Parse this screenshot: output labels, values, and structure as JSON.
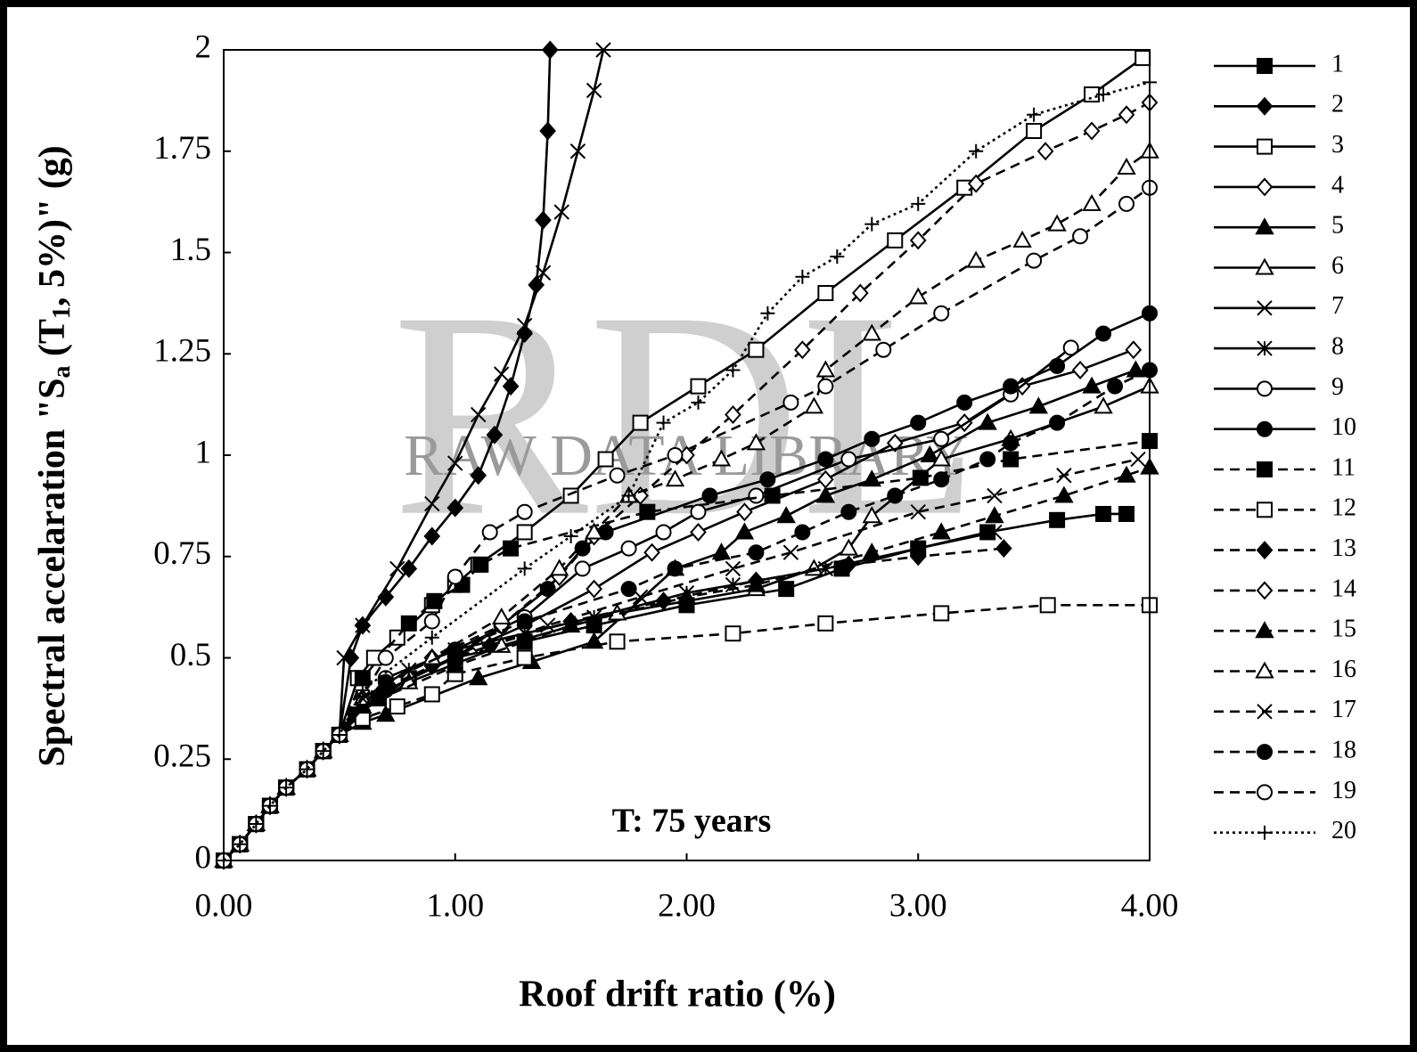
{
  "chart_data": {
    "type": "line",
    "annotation": "T: 75 years",
    "x_label": "Roof drift ratio (%)",
    "y_label_parts": [
      "Spectral accelaration  \"S",
      "a",
      " (T",
      "1",
      ", 5%)\"  (g)"
    ],
    "watermark": [
      "RDL",
      "RAW DATA LIBRARY"
    ],
    "xlim": [
      0,
      4
    ],
    "xticks": [
      {
        "value": 0,
        "label": "0.00"
      },
      {
        "value": 1,
        "label": "1.00"
      },
      {
        "value": 2,
        "label": "2.00"
      },
      {
        "value": 3,
        "label": "3.00"
      },
      {
        "value": 4,
        "label": "4.00"
      }
    ],
    "ylim": [
      0,
      2
    ],
    "yticks": [
      0,
      0.25,
      0.5,
      0.75,
      1,
      1.25,
      1.5,
      1.75,
      2
    ],
    "series": [
      {
        "name": "1",
        "line": "solid",
        "marker": "square",
        "filled": true,
        "color": "#000000",
        "x": [
          0,
          0.07,
          0.14,
          0.2,
          0.27,
          0.36,
          0.43,
          0.5,
          0.57,
          0.67,
          0.8,
          1.0,
          1.3,
          1.6,
          2.0,
          2.43,
          2.67,
          3.0,
          3.3,
          3.6,
          3.8,
          3.9
        ],
        "values": [
          0,
          0.04,
          0.09,
          0.135,
          0.18,
          0.225,
          0.27,
          0.31,
          0.36,
          0.4,
          0.45,
          0.5,
          0.54,
          0.58,
          0.63,
          0.67,
          0.72,
          0.77,
          0.81,
          0.84,
          0.855,
          0.855
        ]
      },
      {
        "name": "2",
        "line": "solid",
        "marker": "diamond",
        "filled": true,
        "color": "#000000",
        "x": [
          0,
          0.07,
          0.14,
          0.2,
          0.27,
          0.36,
          0.43,
          0.5,
          0.55,
          0.6,
          0.7,
          0.8,
          0.9,
          1.0,
          1.1,
          1.17,
          1.24,
          1.3,
          1.35,
          1.38,
          1.4,
          1.41
        ],
        "values": [
          0,
          0.04,
          0.09,
          0.135,
          0.18,
          0.225,
          0.27,
          0.31,
          0.5,
          0.58,
          0.65,
          0.72,
          0.8,
          0.87,
          0.95,
          1.05,
          1.17,
          1.3,
          1.42,
          1.58,
          1.8,
          2.0
        ]
      },
      {
        "name": "3",
        "line": "solid",
        "marker": "square",
        "filled": false,
        "color": "#000000",
        "x": [
          0,
          0.07,
          0.14,
          0.2,
          0.27,
          0.36,
          0.43,
          0.5,
          0.58,
          0.65,
          0.75,
          0.9,
          1.0,
          1.1,
          1.3,
          1.5,
          1.65,
          1.8,
          2.05,
          2.3,
          2.6,
          2.9,
          3.2,
          3.5,
          3.75,
          3.97
        ],
        "values": [
          0,
          0.04,
          0.09,
          0.135,
          0.18,
          0.225,
          0.27,
          0.31,
          0.45,
          0.5,
          0.55,
          0.63,
          0.68,
          0.73,
          0.81,
          0.9,
          0.99,
          1.08,
          1.17,
          1.26,
          1.4,
          1.53,
          1.66,
          1.8,
          1.89,
          1.98
        ]
      },
      {
        "name": "4",
        "line": "solid",
        "marker": "diamond",
        "filled": false,
        "color": "#000000",
        "x": [
          0,
          0.07,
          0.14,
          0.2,
          0.27,
          0.36,
          0.43,
          0.5,
          0.6,
          0.8,
          1.1,
          1.3,
          1.6,
          1.85,
          2.05,
          2.25,
          2.6,
          2.9,
          3.2,
          3.45,
          3.7,
          3.93
        ],
        "values": [
          0,
          0.04,
          0.09,
          0.135,
          0.18,
          0.225,
          0.27,
          0.31,
          0.37,
          0.45,
          0.53,
          0.58,
          0.67,
          0.76,
          0.81,
          0.86,
          0.94,
          1.03,
          1.08,
          1.17,
          1.21,
          1.26
        ]
      },
      {
        "name": "5",
        "line": "solid",
        "marker": "triangle",
        "filled": true,
        "color": "#000000",
        "x": [
          0,
          0.07,
          0.14,
          0.2,
          0.27,
          0.36,
          0.43,
          0.5,
          0.6,
          0.7,
          1.1,
          1.33,
          1.6,
          1.95,
          2.15,
          2.25,
          2.43,
          2.6,
          2.8,
          3.05,
          3.3,
          3.52,
          3.75,
          3.94
        ],
        "values": [
          0,
          0.04,
          0.09,
          0.135,
          0.18,
          0.225,
          0.27,
          0.31,
          0.34,
          0.36,
          0.45,
          0.49,
          0.54,
          0.72,
          0.76,
          0.81,
          0.85,
          0.9,
          0.94,
          1.0,
          1.08,
          1.12,
          1.17,
          1.21
        ]
      },
      {
        "name": "6",
        "line": "solid",
        "marker": "triangle",
        "filled": false,
        "color": "#000000",
        "x": [
          0,
          0.07,
          0.14,
          0.2,
          0.27,
          0.36,
          0.43,
          0.5,
          0.6,
          0.8,
          1.2,
          1.7,
          2.3,
          2.55,
          2.7,
          2.8,
          3.1,
          3.4,
          3.8,
          4.0
        ],
        "values": [
          0,
          0.04,
          0.09,
          0.135,
          0.18,
          0.225,
          0.27,
          0.31,
          0.37,
          0.44,
          0.53,
          0.61,
          0.67,
          0.72,
          0.77,
          0.85,
          0.99,
          1.04,
          1.12,
          1.17
        ]
      },
      {
        "name": "7",
        "line": "solid",
        "marker": "x",
        "filled": false,
        "color": "#000000",
        "x": [
          0,
          0.07,
          0.14,
          0.2,
          0.27,
          0.36,
          0.43,
          0.5,
          0.52,
          0.6,
          0.75,
          0.9,
          1.0,
          1.1,
          1.2,
          1.3,
          1.38,
          1.46,
          1.53,
          1.6,
          1.64
        ],
        "values": [
          0,
          0.04,
          0.09,
          0.135,
          0.18,
          0.225,
          0.27,
          0.31,
          0.5,
          0.58,
          0.72,
          0.88,
          0.98,
          1.1,
          1.2,
          1.32,
          1.45,
          1.6,
          1.75,
          1.9,
          2.0
        ]
      },
      {
        "name": "8",
        "line": "solid",
        "marker": "asterisk",
        "filled": false,
        "color": "#000000",
        "x": [
          0,
          0.07,
          0.14,
          0.2,
          0.27,
          0.36,
          0.43,
          0.5,
          0.6,
          0.8,
          1.0,
          1.3,
          1.6,
          2.0,
          2.2,
          2.6,
          3.0,
          3.33
        ],
        "values": [
          0,
          0.04,
          0.09,
          0.135,
          0.18,
          0.225,
          0.27,
          0.31,
          0.4,
          0.47,
          0.52,
          0.56,
          0.6,
          0.66,
          0.68,
          0.72,
          0.77,
          0.81
        ]
      },
      {
        "name": "9",
        "line": "solid",
        "marker": "circle",
        "filled": false,
        "color": "#000000",
        "x": [
          0,
          0.07,
          0.14,
          0.2,
          0.27,
          0.36,
          0.43,
          0.5,
          0.7,
          1.0,
          1.3,
          1.55,
          1.75,
          1.9,
          2.05,
          2.3,
          2.7,
          3.1,
          3.4,
          3.66
        ],
        "values": [
          0,
          0.04,
          0.09,
          0.135,
          0.18,
          0.225,
          0.27,
          0.31,
          0.45,
          0.52,
          0.6,
          0.72,
          0.77,
          0.81,
          0.86,
          0.9,
          0.99,
          1.04,
          1.15,
          1.265
        ]
      },
      {
        "name": "10",
        "line": "solid",
        "marker": "circle",
        "filled": true,
        "color": "#000000",
        "x": [
          0,
          0.07,
          0.14,
          0.2,
          0.27,
          0.36,
          0.43,
          0.5,
          0.7,
          1.0,
          1.2,
          1.4,
          1.55,
          1.65,
          2.1,
          2.35,
          2.6,
          2.8,
          3.0,
          3.2,
          3.4,
          3.6,
          3.8,
          4.0
        ],
        "values": [
          0,
          0.04,
          0.09,
          0.135,
          0.18,
          0.225,
          0.27,
          0.31,
          0.42,
          0.5,
          0.58,
          0.67,
          0.77,
          0.81,
          0.9,
          0.94,
          0.99,
          1.04,
          1.08,
          1.13,
          1.17,
          1.22,
          1.3,
          1.35
        ]
      },
      {
        "name": "11",
        "line": "dashed",
        "marker": "square",
        "filled": true,
        "color": "#000000",
        "x": [
          0,
          0.07,
          0.14,
          0.2,
          0.27,
          0.36,
          0.43,
          0.5,
          0.6,
          0.8,
          0.91,
          1.03,
          1.11,
          1.24,
          1.83,
          2.37,
          3.01,
          3.4,
          4.0
        ],
        "values": [
          0,
          0.04,
          0.09,
          0.135,
          0.18,
          0.225,
          0.27,
          0.31,
          0.45,
          0.585,
          0.64,
          0.68,
          0.73,
          0.77,
          0.86,
          0.9,
          0.944,
          0.99,
          1.035
        ]
      },
      {
        "name": "12",
        "line": "dashed",
        "marker": "square",
        "filled": false,
        "color": "#000000",
        "x": [
          0,
          0.07,
          0.14,
          0.2,
          0.27,
          0.36,
          0.43,
          0.5,
          0.6,
          0.75,
          0.9,
          1.0,
          1.3,
          1.7,
          2.2,
          2.6,
          3.1,
          3.56,
          4.0
        ],
        "values": [
          0,
          0.04,
          0.09,
          0.135,
          0.18,
          0.225,
          0.27,
          0.31,
          0.35,
          0.38,
          0.41,
          0.46,
          0.5,
          0.54,
          0.56,
          0.585,
          0.61,
          0.63,
          0.63
        ]
      },
      {
        "name": "13",
        "line": "dashed",
        "marker": "diamond",
        "filled": true,
        "color": "#000000",
        "x": [
          0,
          0.07,
          0.14,
          0.2,
          0.27,
          0.36,
          0.43,
          0.5,
          0.6,
          0.9,
          1.15,
          1.5,
          1.9,
          2.3,
          2.7,
          3.0,
          3.37
        ],
        "values": [
          0,
          0.04,
          0.09,
          0.135,
          0.18,
          0.225,
          0.27,
          0.31,
          0.4,
          0.48,
          0.53,
          0.59,
          0.64,
          0.69,
          0.73,
          0.75,
          0.77
        ]
      },
      {
        "name": "14",
        "line": "dashed",
        "marker": "diamond",
        "filled": false,
        "color": "#000000",
        "x": [
          0,
          0.07,
          0.14,
          0.2,
          0.27,
          0.36,
          0.43,
          0.5,
          0.6,
          0.9,
          1.2,
          1.45,
          1.6,
          1.8,
          2.0,
          2.2,
          2.5,
          2.75,
          3.0,
          3.25,
          3.55,
          3.75,
          3.9,
          4.0
        ],
        "values": [
          0,
          0.04,
          0.09,
          0.135,
          0.18,
          0.225,
          0.27,
          0.31,
          0.4,
          0.5,
          0.58,
          0.7,
          0.8,
          0.9,
          1.0,
          1.1,
          1.26,
          1.4,
          1.53,
          1.67,
          1.75,
          1.8,
          1.84,
          1.87
        ]
      },
      {
        "name": "15",
        "line": "dashed",
        "marker": "triangle",
        "filled": true,
        "color": "#000000",
        "x": [
          0,
          0.07,
          0.14,
          0.2,
          0.27,
          0.36,
          0.43,
          0.5,
          0.6,
          1.0,
          1.5,
          2.0,
          2.3,
          2.8,
          3.1,
          3.33,
          3.63,
          3.9,
          4.0
        ],
        "values": [
          0,
          0.04,
          0.09,
          0.135,
          0.18,
          0.225,
          0.27,
          0.31,
          0.38,
          0.48,
          0.58,
          0.65,
          0.68,
          0.76,
          0.81,
          0.85,
          0.9,
          0.95,
          0.97
        ]
      },
      {
        "name": "16",
        "line": "dashed",
        "marker": "triangle",
        "filled": false,
        "color": "#000000",
        "x": [
          0,
          0.07,
          0.14,
          0.2,
          0.27,
          0.36,
          0.43,
          0.5,
          0.6,
          0.9,
          1.2,
          1.45,
          1.6,
          1.75,
          1.95,
          2.15,
          2.3,
          2.55,
          2.6,
          2.8,
          3.0,
          3.25,
          3.45,
          3.6,
          3.75,
          3.9,
          4.0
        ],
        "values": [
          0,
          0.04,
          0.09,
          0.135,
          0.18,
          0.225,
          0.27,
          0.31,
          0.4,
          0.5,
          0.6,
          0.72,
          0.81,
          0.9,
          0.94,
          0.99,
          1.03,
          1.12,
          1.21,
          1.3,
          1.39,
          1.48,
          1.53,
          1.57,
          1.62,
          1.71,
          1.75
        ]
      },
      {
        "name": "17",
        "line": "dashed",
        "marker": "x",
        "filled": false,
        "color": "#000000",
        "x": [
          0,
          0.07,
          0.14,
          0.2,
          0.27,
          0.36,
          0.43,
          0.5,
          0.6,
          1.0,
          1.4,
          1.8,
          2.2,
          2.45,
          3.0,
          3.33,
          3.63,
          3.95
        ],
        "values": [
          0,
          0.04,
          0.09,
          0.135,
          0.18,
          0.225,
          0.27,
          0.31,
          0.4,
          0.5,
          0.58,
          0.65,
          0.72,
          0.76,
          0.86,
          0.9,
          0.95,
          0.99
        ]
      },
      {
        "name": "18",
        "line": "dashed",
        "marker": "circle",
        "filled": true,
        "color": "#000000",
        "x": [
          0,
          0.07,
          0.14,
          0.2,
          0.27,
          0.36,
          0.43,
          0.5,
          0.7,
          1.0,
          1.3,
          1.75,
          1.95,
          2.3,
          2.5,
          2.7,
          2.9,
          3.1,
          3.3,
          3.4,
          3.6,
          3.85,
          4.0
        ],
        "values": [
          0,
          0.04,
          0.09,
          0.135,
          0.18,
          0.225,
          0.27,
          0.31,
          0.44,
          0.52,
          0.59,
          0.67,
          0.72,
          0.76,
          0.81,
          0.86,
          0.9,
          0.94,
          0.99,
          1.03,
          1.08,
          1.17,
          1.21
        ]
      },
      {
        "name": "19",
        "line": "dashed",
        "marker": "circle",
        "filled": false,
        "color": "#000000",
        "x": [
          0,
          0.07,
          0.14,
          0.2,
          0.27,
          0.36,
          0.43,
          0.5,
          0.7,
          0.9,
          1.0,
          1.15,
          1.3,
          1.7,
          1.95,
          2.45,
          2.6,
          2.85,
          3.1,
          3.5,
          3.7,
          3.9,
          4.0
        ],
        "values": [
          0,
          0.04,
          0.09,
          0.135,
          0.18,
          0.225,
          0.27,
          0.31,
          0.5,
          0.59,
          0.7,
          0.81,
          0.86,
          0.95,
          1.0,
          1.13,
          1.17,
          1.26,
          1.35,
          1.48,
          1.54,
          1.62,
          1.66
        ]
      },
      {
        "name": "20",
        "line": "dotted",
        "marker": "plus",
        "filled": false,
        "color": "#000000",
        "x": [
          0,
          0.07,
          0.14,
          0.2,
          0.27,
          0.36,
          0.43,
          0.5,
          0.6,
          0.9,
          1.3,
          1.5,
          1.75,
          1.9,
          2.05,
          2.2,
          2.35,
          2.5,
          2.65,
          2.8,
          3.0,
          3.25,
          3.5,
          3.8,
          4.0
        ],
        "values": [
          0,
          0.04,
          0.09,
          0.135,
          0.18,
          0.225,
          0.27,
          0.31,
          0.42,
          0.55,
          0.72,
          0.8,
          0.9,
          1.08,
          1.13,
          1.21,
          1.35,
          1.44,
          1.49,
          1.57,
          1.62,
          1.75,
          1.84,
          1.89,
          1.92
        ]
      }
    ]
  }
}
